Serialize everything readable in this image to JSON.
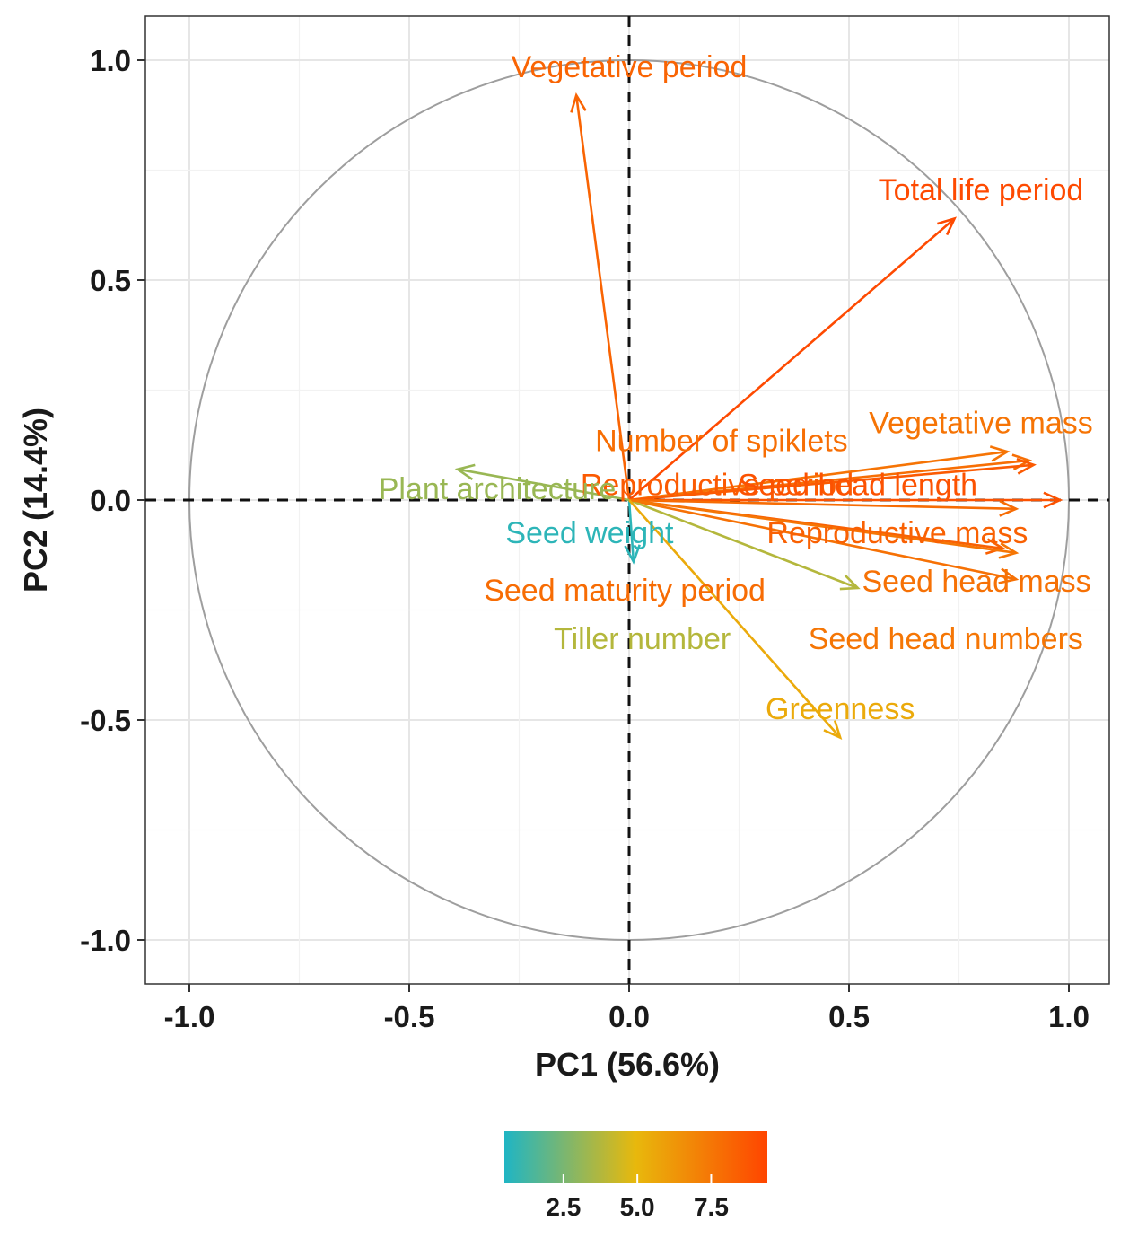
{
  "chart_data": {
    "type": "pca-variable-correlation-circle",
    "xlabel": "PC1 (56.6%)",
    "ylabel": "PC2 (14.4%)",
    "xlim": [
      -1.1,
      1.1
    ],
    "ylim": [
      -1.1,
      1.1
    ],
    "x_ticks": [
      {
        "value": -1.0,
        "label": "-1.0"
      },
      {
        "value": -0.5,
        "label": "-0.5"
      },
      {
        "value": 0.0,
        "label": "0.0"
      },
      {
        "value": 0.5,
        "label": "0.5"
      },
      {
        "value": 1.0,
        "label": "1.0"
      }
    ],
    "y_ticks": [
      {
        "value": 1.0,
        "label": "1.0"
      },
      {
        "value": 0.5,
        "label": "0.5"
      },
      {
        "value": 0.0,
        "label": "0.0"
      },
      {
        "value": -0.5,
        "label": "-0.5"
      },
      {
        "value": -1.0,
        "label": "-1.0"
      }
    ],
    "grid": true,
    "reference_lines": {
      "x": 0,
      "y": 0,
      "style": "dashed"
    },
    "circle_radius": 1.0,
    "variables": [
      {
        "name": "Vegetative period",
        "x": -0.12,
        "y": 0.92,
        "contrib": 8.2,
        "label_x": 0.0,
        "label_y": 0.98
      },
      {
        "name": "Total life period",
        "x": 0.74,
        "y": 0.64,
        "contrib": 9.2,
        "label_x": 0.8,
        "label_y": 0.7
      },
      {
        "name": "Number of spiklets",
        "x": 0.91,
        "y": 0.09,
        "contrib": 7.8,
        "label_x": 0.21,
        "label_y": 0.13
      },
      {
        "name": "Vegetative mass",
        "x": 0.86,
        "y": 0.11,
        "contrib": 7.6,
        "label_x": 0.8,
        "label_y": 0.17
      },
      {
        "name": "Reproductive period",
        "x": 0.92,
        "y": 0.08,
        "contrib": 8.6,
        "label_x": 0.2,
        "label_y": 0.03
      },
      {
        "name": "Seed head length",
        "x": 0.98,
        "y": 0.0,
        "contrib": 8.9,
        "label_x": 0.52,
        "label_y": 0.03
      },
      {
        "name": "Plant architecture",
        "x": -0.39,
        "y": 0.07,
        "contrib": 3.2,
        "label_x": -0.3,
        "label_y": 0.02
      },
      {
        "name": "Seed weight",
        "x": 0.01,
        "y": -0.14,
        "contrib": 0.8,
        "label_x": -0.09,
        "label_y": -0.08
      },
      {
        "name": "Reproductive mass",
        "x": 0.85,
        "y": -0.11,
        "contrib": 8.3,
        "label_x": 0.61,
        "label_y": -0.08
      },
      {
        "name": "Seed maturity period",
        "x": 0.88,
        "y": -0.02,
        "contrib": 7.9,
        "label_x": -0.01,
        "label_y": -0.21
      },
      {
        "name": "Seed head mass",
        "x": 0.88,
        "y": -0.18,
        "contrib": 7.7,
        "label_x": 0.79,
        "label_y": -0.19
      },
      {
        "name": "Tiller number",
        "x": 0.52,
        "y": -0.2,
        "contrib": 3.8,
        "label_x": 0.03,
        "label_y": -0.32
      },
      {
        "name": "Seed head numbers",
        "x": 0.88,
        "y": -0.12,
        "contrib": 7.5,
        "label_x": 0.72,
        "label_y": -0.32
      },
      {
        "name": "Greenness",
        "x": 0.48,
        "y": -0.54,
        "contrib": 5.5,
        "label_x": 0.48,
        "label_y": -0.48
      }
    ],
    "legend": {
      "type": "colorbar",
      "placement": "bottom",
      "min": 0.5,
      "max": 9.4,
      "ticks": [
        {
          "value": 2.5,
          "label": "2.5"
        },
        {
          "value": 5.0,
          "label": "5.0"
        },
        {
          "value": 7.5,
          "label": "7.5"
        }
      ],
      "colors": {
        "low": "#1fb5c4",
        "mid": "#e8b80c",
        "high": "#ff4500"
      }
    }
  }
}
